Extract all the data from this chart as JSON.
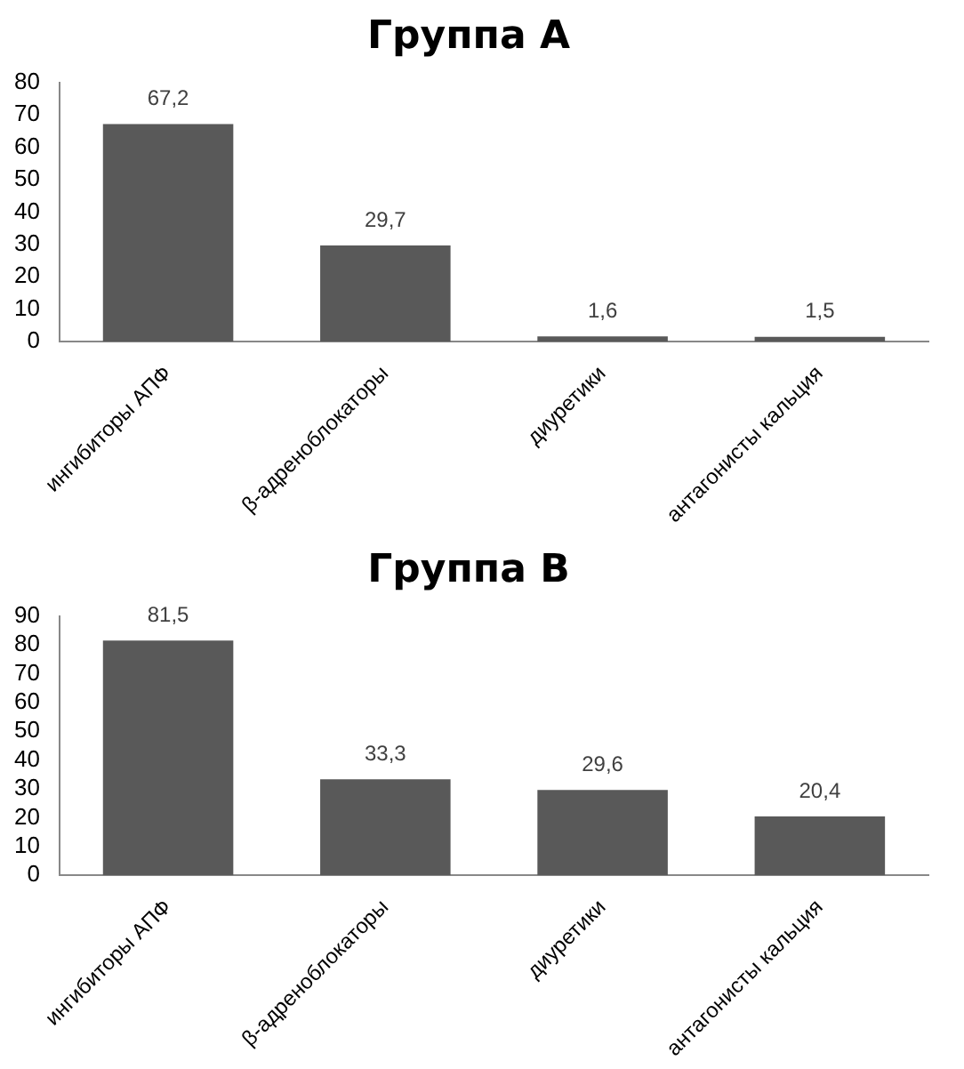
{
  "chart_data": [
    {
      "type": "bar",
      "title": "Группа А",
      "categories": [
        "ингибиторы АПФ",
        "β-адреноблокаторы",
        "диуретики",
        "антагонисты кальция"
      ],
      "values": [
        67.2,
        29.7,
        1.6,
        1.5
      ],
      "value_labels": [
        "67,2",
        "29,7",
        "1,6",
        "1,5"
      ],
      "color": "#595959",
      "ylim": [
        0,
        80
      ],
      "yticks": [
        0,
        10,
        20,
        30,
        40,
        50,
        60,
        70,
        80
      ],
      "grid": false,
      "legend": false
    },
    {
      "type": "bar",
      "title": "Группа В",
      "categories": [
        "ингибиторы АПФ",
        "β-адреноблокаторы",
        "диуретики",
        "антагонисты кальция"
      ],
      "values": [
        81.5,
        33.3,
        29.6,
        20.4
      ],
      "value_labels": [
        "81,5",
        "33,3",
        "29,6",
        "20,4"
      ],
      "color": "#595959",
      "ylim": [
        0,
        90
      ],
      "yticks": [
        0,
        10,
        20,
        30,
        40,
        50,
        60,
        70,
        80,
        90
      ],
      "grid": false,
      "legend": false
    }
  ]
}
